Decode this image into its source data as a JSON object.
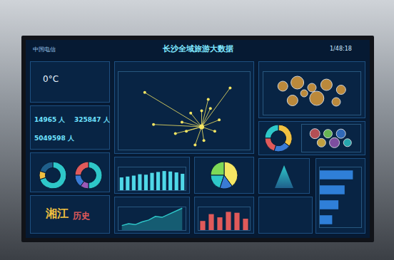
{
  "header": {
    "logo": "中国电信",
    "title": "长沙全域旅游大数据",
    "time": "1/48:18"
  },
  "weather": {
    "temp": "0°C"
  },
  "visitors": [
    {
      "value": "14965",
      "unit": "人"
    },
    {
      "value": "325847",
      "unit": "人"
    },
    {
      "value": "5049598",
      "unit": "人"
    }
  ],
  "wordcloud": [
    "湘江",
    "历史"
  ],
  "chart_data": [
    {
      "type": "scatter",
      "marker": "map",
      "x": [
        87,
        116,
        121,
        104,
        126,
        114,
        108,
        117,
        119,
        106,
        101,
        113,
        91,
        110
      ],
      "y": [
        43,
        40,
        31,
        30,
        45,
        22,
        34,
        36,
        26,
        26,
        25,
        35,
        29,
        20
      ],
      "center": [
        113,
        28
      ],
      "xlim": [
        75,
        135
      ],
      "ylim": [
        18,
        52
      ],
      "color": "#f5e663",
      "tick_labels": false
    },
    {
      "type": "scatter",
      "marker": "bubble",
      "x": [
        2,
        3.5,
        5,
        6.5,
        8,
        3,
        5.5,
        7.5,
        4.2
      ],
      "y": [
        4,
        4.5,
        3.8,
        4.2,
        3.5,
        2,
        2.3,
        1.8,
        3
      ],
      "sizes": [
        14,
        18,
        12,
        16,
        13,
        15,
        20,
        12,
        10
      ],
      "xlim": [
        0,
        10
      ],
      "ylim": [
        0,
        6
      ],
      "color": "#e8a33a",
      "tick_labels": false
    },
    {
      "type": "donut",
      "values": [
        35,
        25,
        20,
        20
      ],
      "colors": [
        "#f0c040",
        "#2ec7c9",
        "#e05a5a",
        "#3a7bd5"
      ]
    },
    {
      "type": "scatter",
      "marker": "bubble",
      "x": [
        1,
        2,
        3,
        1.5,
        2.5,
        3.5
      ],
      "y": [
        2,
        2,
        2,
        1,
        1,
        1
      ],
      "sizes": [
        14,
        12,
        13,
        12,
        14,
        11
      ],
      "colors": [
        "#e05a5a",
        "#7ed957",
        "#3a7bd5",
        "#f0c040",
        "#9b59b6",
        "#2ec7c9"
      ],
      "xlim": [
        0,
        4.5
      ],
      "ylim": [
        0,
        3
      ],
      "tick_labels": false
    },
    {
      "type": "donut",
      "values": [
        70,
        20,
        10
      ],
      "colors": [
        "#2ec7c9",
        "#1f5f8b",
        "#f0c040"
      ]
    },
    {
      "type": "donut",
      "values": [
        50,
        25,
        15,
        10
      ],
      "colors": [
        "#2ec7c9",
        "#e05a5a",
        "#3a7bd5",
        "#9b59b6"
      ]
    },
    {
      "type": "bar",
      "categories": [
        null,
        null,
        null,
        null,
        null,
        null,
        null,
        null,
        null,
        null,
        null
      ],
      "values": [
        28,
        30,
        32,
        35,
        34,
        38,
        40,
        42,
        41,
        39,
        36
      ],
      "ylim": [
        0,
        50
      ],
      "color": "#4fd8e8",
      "tick_labels": false
    },
    {
      "type": "pie",
      "values": [
        40,
        25,
        20,
        15
      ],
      "colors": [
        "#f5e663",
        "#7ed957",
        "#2ec7c9",
        "#3a7bd5"
      ]
    },
    {
      "type": "line",
      "categories": [
        null,
        null,
        null,
        null,
        null,
        null,
        null,
        null,
        null,
        null
      ],
      "values": [
        10,
        14,
        12,
        18,
        22,
        30,
        28,
        35,
        42,
        48
      ],
      "ylim": [
        0,
        50
      ],
      "color": "#2ec7c9",
      "tick_labels": false
    },
    {
      "type": "bar",
      "categories": [
        null,
        null,
        null,
        null,
        null,
        null
      ],
      "values": [
        20,
        35,
        28,
        40,
        38,
        25
      ],
      "ylim": [
        0,
        50
      ],
      "color": "#e05a5a",
      "tick_labels": false
    },
    {
      "type": "bar",
      "orientation": "horizontal",
      "categories": [
        null,
        null,
        null,
        null
      ],
      "values": [
        80,
        60,
        45,
        30
      ],
      "xlim": [
        0,
        100
      ],
      "color": "#2f7fd8",
      "tick_labels": false
    }
  ]
}
